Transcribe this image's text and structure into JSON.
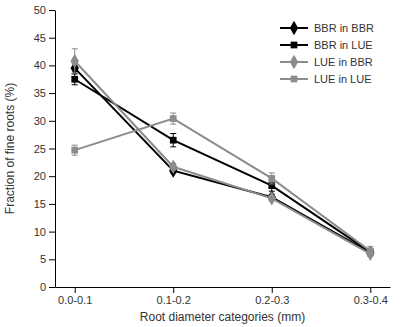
{
  "chart_data": {
    "type": "line",
    "x_label": "Root diameter categories (mm)",
    "y_label": "Fraction of fine roots (%)",
    "categories": [
      "0.0-0.1",
      "0.1-0.2",
      "0.2-0.3",
      "0.3-0.4"
    ],
    "ylim": [
      0,
      50
    ],
    "yticks": [
      0,
      5,
      10,
      15,
      20,
      25,
      30,
      35,
      40,
      45,
      50
    ],
    "grid": false,
    "legend": "upper right",
    "series": [
      {
        "name": "BBR in BBR",
        "color": "#000000",
        "marker": "diamond",
        "line_style": "solid",
        "values": [
          39.5,
          21.0,
          16.2,
          6.2
        ],
        "errors": [
          1.0,
          0.4,
          0.5,
          0.4
        ]
      },
      {
        "name": "BBR in LUE",
        "color": "#000000",
        "marker": "square",
        "line_style": "solid",
        "values": [
          37.5,
          26.5,
          18.3,
          6.3
        ],
        "errors": [
          1.0,
          1.2,
          1.0,
          0.5
        ]
      },
      {
        "name": "LUE in BBR",
        "color": "#8c8c8c",
        "marker": "diamond",
        "line_style": "solid",
        "values": [
          40.8,
          21.7,
          16.0,
          6.0
        ],
        "errors": [
          2.2,
          0.6,
          0.5,
          0.5
        ]
      },
      {
        "name": "LUE in LUE",
        "color": "#8c8c8c",
        "marker": "square",
        "line_style": "solid",
        "values": [
          24.7,
          30.4,
          19.6,
          6.5
        ],
        "errors": [
          0.9,
          1.0,
          1.0,
          0.8
        ]
      }
    ]
  }
}
